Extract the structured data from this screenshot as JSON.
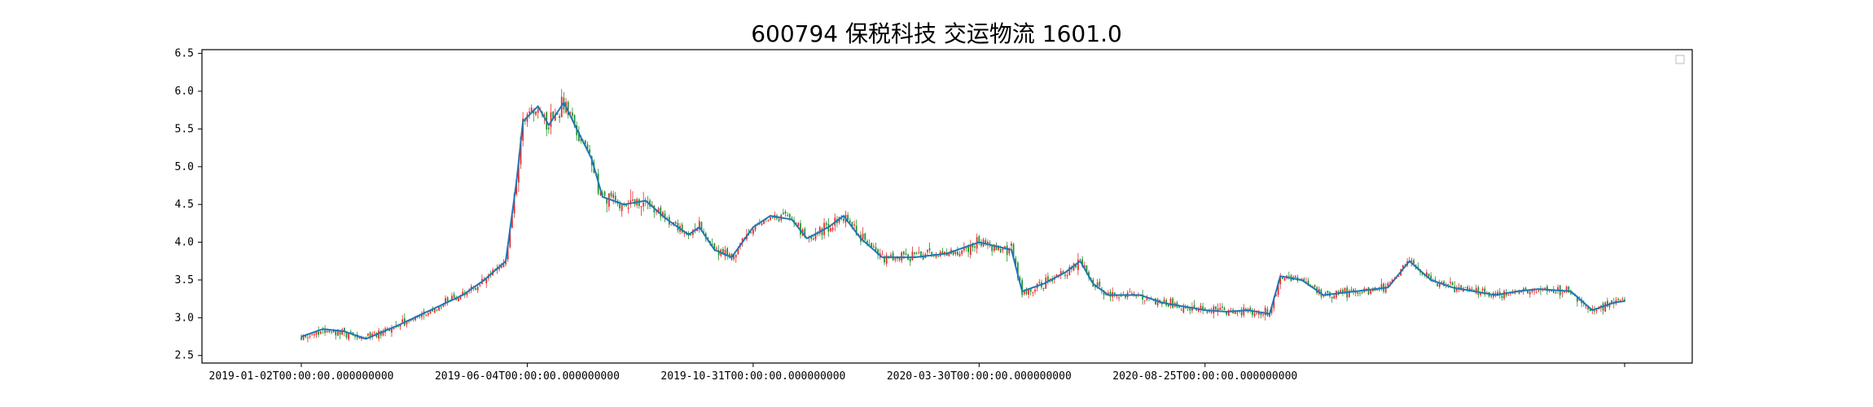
{
  "chart_data": {
    "type": "candlestick",
    "title": "600794 保税科技 交运物流 1601.0",
    "xlabel": "",
    "ylabel": "",
    "ylim": [
      2.4,
      6.55
    ],
    "grid": false,
    "legend": {
      "placement": "top-right",
      "entries": []
    },
    "y_ticks": [
      "2.5",
      "3.0",
      "3.5",
      "4.0",
      "4.5",
      "5.0",
      "5.5",
      "6.0",
      "6.5"
    ],
    "x_ticks": [
      "2019-01-02T00:00:00.000000000",
      "2019-06-04T00:00:00.000000000",
      "2019-10-31T00:00:00.000000000",
      "2020-03-30T00:00:00.000000000",
      "2020-08-25T00:00:00.000000000",
      ""
    ],
    "colors": {
      "up": "#e8272a",
      "down": "#1f8f2a",
      "ma": "#1f77b4"
    },
    "series": [
      {
        "name": "",
        "kind": "ma",
        "trend": [
          [
            0,
            2.75
          ],
          [
            10,
            2.85
          ],
          [
            20,
            2.82
          ],
          [
            30,
            2.72
          ],
          [
            45,
            2.9
          ],
          [
            60,
            3.1
          ],
          [
            75,
            3.3
          ],
          [
            85,
            3.5
          ],
          [
            95,
            3.75
          ],
          [
            100,
            4.8
          ],
          [
            103,
            5.6
          ],
          [
            110,
            5.8
          ],
          [
            115,
            5.55
          ],
          [
            122,
            5.85
          ],
          [
            128,
            5.5
          ],
          [
            135,
            5.1
          ],
          [
            140,
            4.6
          ],
          [
            150,
            4.5
          ],
          [
            160,
            4.55
          ],
          [
            170,
            4.3
          ],
          [
            180,
            4.1
          ],
          [
            185,
            4.2
          ],
          [
            192,
            3.9
          ],
          [
            200,
            3.8
          ],
          [
            210,
            4.2
          ],
          [
            218,
            4.35
          ],
          [
            228,
            4.3
          ],
          [
            235,
            4.05
          ],
          [
            245,
            4.2
          ],
          [
            252,
            4.35
          ],
          [
            260,
            4.05
          ],
          [
            270,
            3.8
          ],
          [
            285,
            3.8
          ],
          [
            300,
            3.85
          ],
          [
            315,
            4.0
          ],
          [
            330,
            3.9
          ],
          [
            335,
            3.35
          ],
          [
            345,
            3.45
          ],
          [
            355,
            3.6
          ],
          [
            362,
            3.75
          ],
          [
            368,
            3.45
          ],
          [
            375,
            3.3
          ],
          [
            390,
            3.3
          ],
          [
            400,
            3.2
          ],
          [
            410,
            3.15
          ],
          [
            420,
            3.1
          ],
          [
            430,
            3.08
          ],
          [
            440,
            3.1
          ],
          [
            450,
            3.05
          ],
          [
            455,
            3.55
          ],
          [
            465,
            3.5
          ],
          [
            475,
            3.3
          ],
          [
            490,
            3.35
          ],
          [
            505,
            3.4
          ],
          [
            515,
            3.75
          ],
          [
            525,
            3.5
          ],
          [
            535,
            3.4
          ],
          [
            545,
            3.35
          ],
          [
            555,
            3.3
          ],
          [
            565,
            3.35
          ],
          [
            575,
            3.38
          ],
          [
            590,
            3.35
          ],
          [
            600,
            3.1
          ],
          [
            610,
            3.2
          ],
          [
            615,
            3.22
          ]
        ]
      }
    ]
  }
}
